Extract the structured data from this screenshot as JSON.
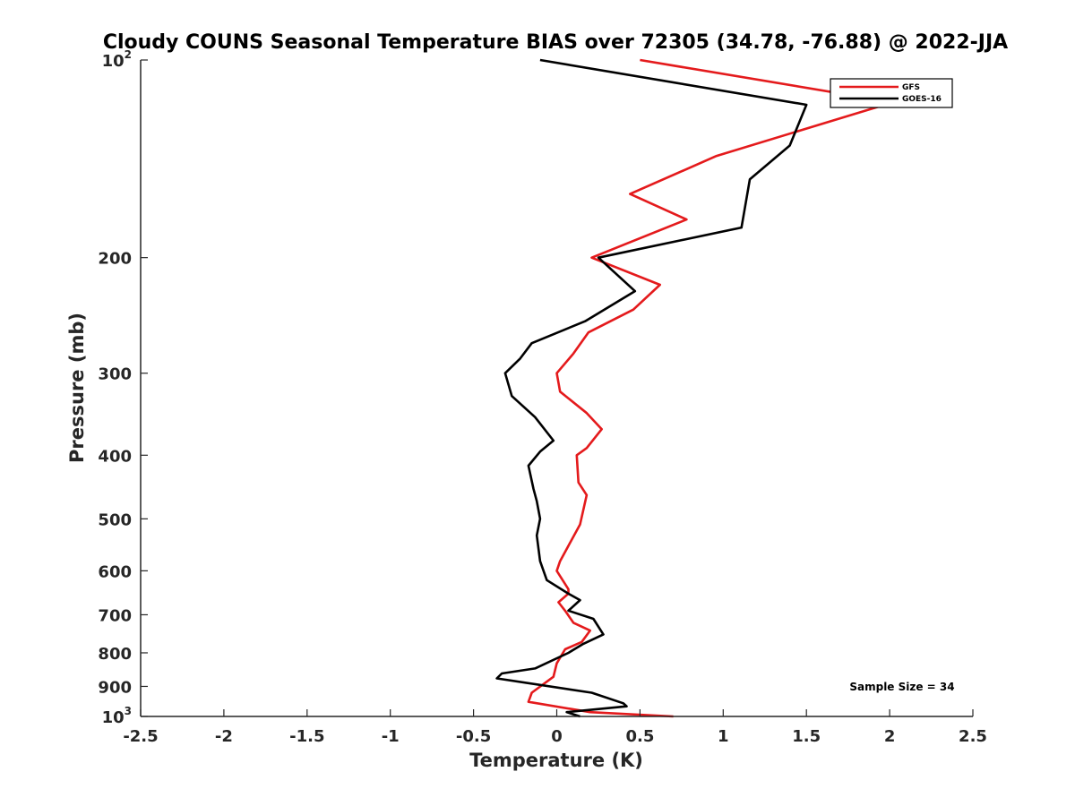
{
  "chart_data": {
    "type": "line",
    "title": "Cloudy COUNS Seasonal Temperature BIAS over 72305 (34.78, -76.88) @ 2022-JJA",
    "xlabel": "Temperature (K)",
    "ylabel": "Pressure (mb)",
    "xlim": [
      -2.5,
      2.5
    ],
    "ylim": [
      100,
      1000
    ],
    "yscale": "log",
    "y_reversed": true,
    "grid": false,
    "legend_position": "top-right",
    "x_ticks": [
      "-2.5",
      "-2",
      "-1.5",
      "-1",
      "-0.5",
      "0",
      "0.5",
      "1",
      "1.5",
      "2",
      "2.5"
    ],
    "y_ticks": [
      {
        "value": 100,
        "label": "10",
        "sup": "2"
      },
      {
        "value": 200,
        "label": "200",
        "sup": ""
      },
      {
        "value": 300,
        "label": "300",
        "sup": ""
      },
      {
        "value": 400,
        "label": "400",
        "sup": ""
      },
      {
        "value": 500,
        "label": "500",
        "sup": ""
      },
      {
        "value": 600,
        "label": "600",
        "sup": ""
      },
      {
        "value": 700,
        "label": "700",
        "sup": ""
      },
      {
        "value": 800,
        "label": "800",
        "sup": ""
      },
      {
        "value": 900,
        "label": "900",
        "sup": ""
      },
      {
        "value": 1000,
        "label": "10",
        "sup": "3"
      }
    ],
    "series": [
      {
        "name": "GFS",
        "color": "#e41a1c",
        "points": [
          [
            0.5,
            100
          ],
          [
            2.02,
            116
          ],
          [
            0.96,
            140
          ],
          [
            0.44,
            160
          ],
          [
            0.78,
            175
          ],
          [
            0.21,
            200
          ],
          [
            0.62,
            220
          ],
          [
            0.46,
            240
          ],
          [
            0.19,
            260
          ],
          [
            0.1,
            280
          ],
          [
            0.0,
            300
          ],
          [
            0.02,
            320
          ],
          [
            0.18,
            345
          ],
          [
            0.27,
            365
          ],
          [
            0.18,
            390
          ],
          [
            0.12,
            400
          ],
          [
            0.13,
            440
          ],
          [
            0.18,
            460
          ],
          [
            0.14,
            510
          ],
          [
            0.02,
            580
          ],
          [
            0.0,
            600
          ],
          [
            0.07,
            640
          ],
          [
            0.07,
            650
          ],
          [
            0.01,
            670
          ],
          [
            0.05,
            690
          ],
          [
            0.1,
            720
          ],
          [
            0.2,
            740
          ],
          [
            0.15,
            770
          ],
          [
            0.05,
            790
          ],
          [
            0.0,
            830
          ],
          [
            -0.02,
            870
          ],
          [
            -0.15,
            920
          ],
          [
            -0.17,
            950
          ],
          [
            0.2,
            985
          ],
          [
            0.7,
            1000
          ]
        ]
      },
      {
        "name": "GOES-16",
        "color": "#000000",
        "points": [
          [
            -0.1,
            100
          ],
          [
            1.5,
            117
          ],
          [
            1.4,
            135
          ],
          [
            1.16,
            152
          ],
          [
            1.11,
            180
          ],
          [
            0.25,
            200
          ],
          [
            0.47,
            225
          ],
          [
            0.17,
            250
          ],
          [
            -0.15,
            270
          ],
          [
            -0.22,
            285
          ],
          [
            -0.31,
            300
          ],
          [
            -0.27,
            325
          ],
          [
            -0.13,
            350
          ],
          [
            -0.02,
            380
          ],
          [
            -0.1,
            395
          ],
          [
            -0.17,
            415
          ],
          [
            -0.14,
            450
          ],
          [
            -0.12,
            470
          ],
          [
            -0.1,
            500
          ],
          [
            -0.12,
            530
          ],
          [
            -0.1,
            580
          ],
          [
            -0.06,
            620
          ],
          [
            0.07,
            650
          ],
          [
            0.14,
            665
          ],
          [
            0.07,
            690
          ],
          [
            0.22,
            710
          ],
          [
            0.28,
            750
          ],
          [
            0.16,
            775
          ],
          [
            0.07,
            800
          ],
          [
            -0.13,
            845
          ],
          [
            -0.33,
            860
          ],
          [
            -0.36,
            875
          ],
          [
            0.21,
            920
          ],
          [
            0.4,
            955
          ],
          [
            0.42,
            965
          ],
          [
            0.06,
            985
          ],
          [
            0.14,
            1000
          ]
        ]
      }
    ],
    "annotation": "Sample Size = 34"
  }
}
